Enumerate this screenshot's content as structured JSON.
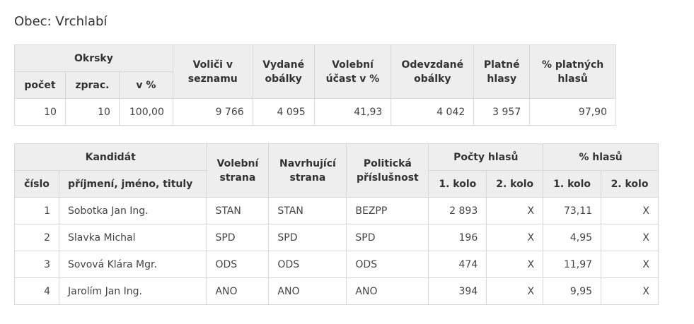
{
  "title": "Obec: Vrchlabí",
  "summary": {
    "headers": {
      "okrsky": "Okrsky",
      "pocet": "počet",
      "zprac": "zprac.",
      "v_pct": "v %",
      "volici": "Voliči v seznamu",
      "vydane": "Vydané obálky",
      "ucast": "Volební účast v %",
      "odevzdane": "Odevzdané obálky",
      "platne": "Platné hlasy",
      "pct_platnych": "% platných hlasů"
    },
    "row": {
      "pocet": "10",
      "zprac": "10",
      "v_pct": "100,00",
      "volici": "9 766",
      "vydane": "4 095",
      "ucast": "41,93",
      "odevzdane": "4 042",
      "platne": "3 957",
      "pct_platnych": "97,90"
    }
  },
  "candidates": {
    "headers": {
      "kandidat": "Kandidát",
      "cislo": "číslo",
      "jmeno": "příjmení, jméno, tituly",
      "volebni_strana": "Volební strana",
      "navrhujici_strana": "Navrhující strana",
      "politicka": "Politická příslušnost",
      "pocty": "Počty hlasů",
      "pct_hlasu": "% hlasů",
      "kolo1": "1. kolo",
      "kolo2": "2. kolo",
      "pkolo1": "1. kolo",
      "pkolo2": "2. kolo"
    },
    "rows": [
      {
        "cislo": "1",
        "jmeno": "Sobotka Jan Ing.",
        "volebni": "STAN",
        "navrhujici": "STAN",
        "politicka": "BEZPP",
        "hlasy1": "2 893",
        "hlasy2": "X",
        "pct1": "73,11",
        "pct2": "X"
      },
      {
        "cislo": "2",
        "jmeno": "Slavka Michal",
        "volebni": "SPD",
        "navrhujici": "SPD",
        "politicka": "SPD",
        "hlasy1": "196",
        "hlasy2": "X",
        "pct1": "4,95",
        "pct2": "X"
      },
      {
        "cislo": "3",
        "jmeno": "Sovová Klára Mgr.",
        "volebni": "ODS",
        "navrhujici": "ODS",
        "politicka": "ODS",
        "hlasy1": "474",
        "hlasy2": "X",
        "pct1": "11,97",
        "pct2": "X"
      },
      {
        "cislo": "4",
        "jmeno": "Jarolím Jan Ing.",
        "volebni": "ANO",
        "navrhujici": "ANO",
        "politicka": "ANO",
        "hlasy1": "394",
        "hlasy2": "X",
        "pct1": "9,95",
        "pct2": "X"
      }
    ]
  }
}
